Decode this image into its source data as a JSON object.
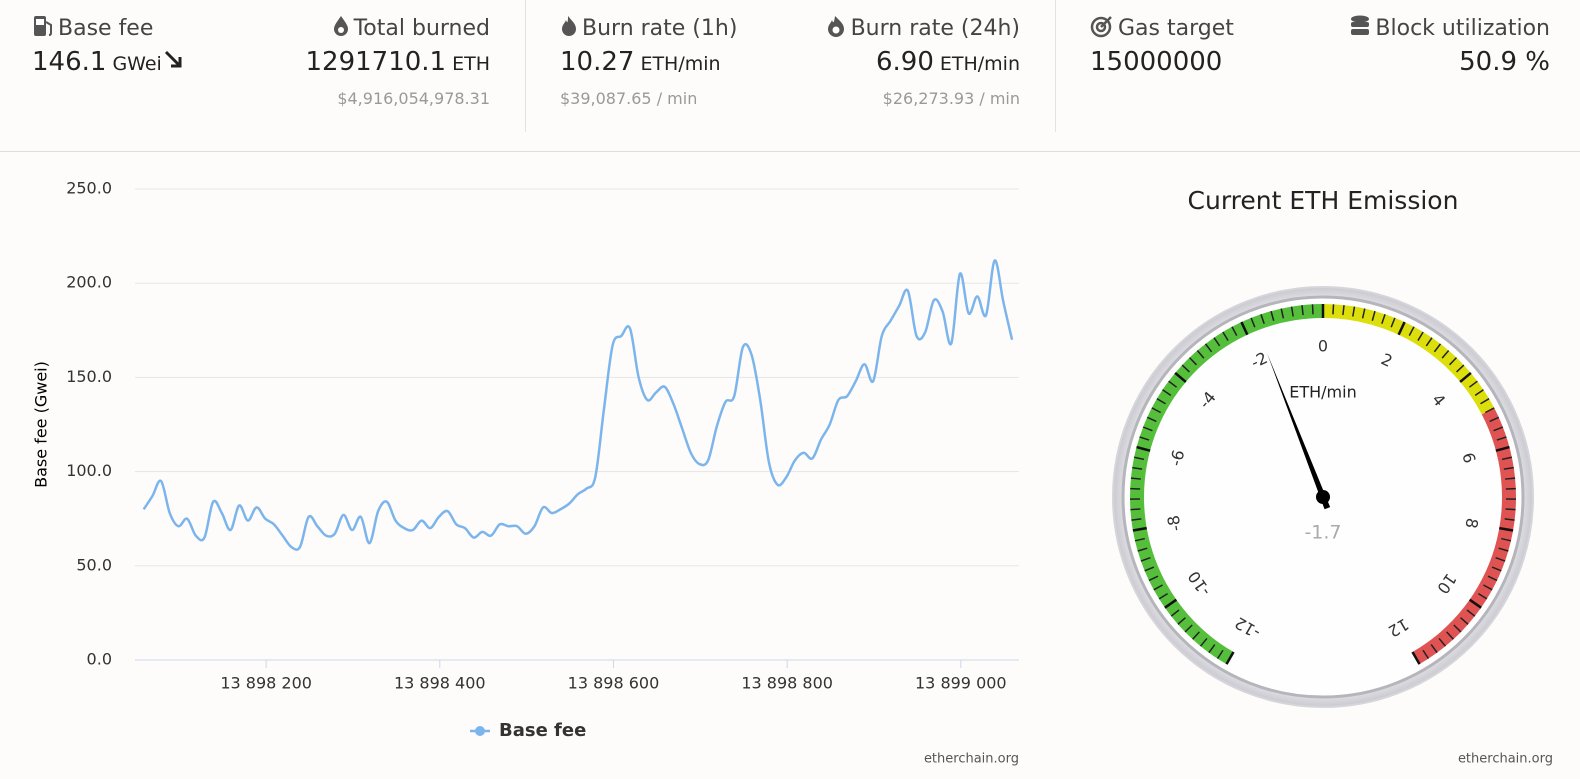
{
  "stats": [
    {
      "label": "Base fee",
      "value": "146.1",
      "unit": "GWei"
    },
    {
      "label": "Total burned",
      "value": "1291710.1",
      "unit": "ETH",
      "sub": "$4,916,054,978.31"
    },
    {
      "label": "Burn rate (1h)",
      "value": "10.27",
      "unit": "ETH/min",
      "sub": "$39,087.65 / min"
    },
    {
      "label": "Burn rate (24h)",
      "value": "6.90",
      "unit": "ETH/min",
      "sub": "$26,273.93 / min"
    },
    {
      "label": "Gas target",
      "value": "15000000"
    },
    {
      "label": "Block utilization",
      "value": "50.9 %"
    }
  ],
  "chart_data": [
    {
      "type": "line",
      "ylabel": "Base fee (Gwei)",
      "credit": "etherchain.org",
      "xlim": [
        13898049,
        13899067
      ],
      "ylim": [
        0,
        250
      ],
      "xticks": [
        {
          "value": 13898200,
          "label": "13 898 200"
        },
        {
          "value": 13898400,
          "label": "13 898 400"
        },
        {
          "value": 13898600,
          "label": "13 898 600"
        },
        {
          "value": 13898800,
          "label": "13 898 800"
        },
        {
          "value": 13899000,
          "label": "13 899 000"
        }
      ],
      "yticks": [
        {
          "value": 0,
          "label": "0.0"
        },
        {
          "value": 50,
          "label": "50.0"
        },
        {
          "value": 100,
          "label": "100.0"
        },
        {
          "value": 150,
          "label": "150.0"
        },
        {
          "value": 200,
          "label": "200.0"
        },
        {
          "value": 250,
          "label": "250.0"
        }
      ],
      "grid": true,
      "x": [
        13898059,
        13898069,
        13898079,
        13898089,
        13898099,
        13898109,
        13898119,
        13898129,
        13898139,
        13898149,
        13898159,
        13898169,
        13898179,
        13898189,
        13898199,
        13898209,
        13898219,
        13898229,
        13898239,
        13898249,
        13898259,
        13898269,
        13898279,
        13898289,
        13898299,
        13898309,
        13898319,
        13898329,
        13898339,
        13898349,
        13898359,
        13898369,
        13898379,
        13898389,
        13898399,
        13898409,
        13898419,
        13898429,
        13898439,
        13898449,
        13898459,
        13898469,
        13898479,
        13898489,
        13898499,
        13898509,
        13898519,
        13898529,
        13898539,
        13898549,
        13898559,
        13898569,
        13898579,
        13898589,
        13898599,
        13898609,
        13898619,
        13898629,
        13898639,
        13898649,
        13898659,
        13898669,
        13898679,
        13898689,
        13898699,
        13898709,
        13898719,
        13898729,
        13898739,
        13898749,
        13898759,
        13898769,
        13898779,
        13898789,
        13898799,
        13898809,
        13898819,
        13898829,
        13898839,
        13898849,
        13898859,
        13898869,
        13898879,
        13898889,
        13898899,
        13898909,
        13898919,
        13898929,
        13898939,
        13898949,
        13898959,
        13898969,
        13898979,
        13898989,
        13898999,
        13899009,
        13899019,
        13899029,
        13899039,
        13899049,
        13899059
      ],
      "series": [
        {
          "name": "Base fee",
          "color": "#7cb5ec",
          "values": [
            80,
            87,
            95,
            78,
            71,
            75,
            66,
            65,
            84,
            78,
            69,
            82,
            74,
            81,
            75,
            72,
            66,
            60,
            60,
            76,
            71,
            66,
            67,
            77,
            69,
            76,
            62,
            79,
            84,
            74,
            70,
            69,
            74,
            70,
            76,
            79,
            72,
            70,
            65,
            68,
            66,
            72,
            71,
            71,
            67,
            71,
            81,
            78,
            80,
            83,
            88,
            91,
            97,
            133,
            167,
            172,
            176,
            150,
            138,
            142,
            145,
            136,
            123,
            110,
            104,
            106,
            124,
            137,
            140,
            166,
            162,
            138,
            105,
            93,
            97,
            106,
            110,
            107,
            117,
            125,
            138,
            140,
            148,
            157,
            148,
            172,
            180,
            188,
            196,
            172,
            174,
            191,
            185,
            168,
            205,
            184,
            193,
            183,
            212,
            190,
            170
          ]
        }
      ]
    },
    {
      "type": "gauge",
      "title": "Current ETH Emission",
      "unit": "ETH/min",
      "credit": "etherchain.org",
      "value": -1.7,
      "lim": [
        -12,
        12
      ],
      "ticks": [
        -12,
        -10,
        -8,
        -6,
        -4,
        -2,
        0,
        2,
        4,
        6,
        8,
        10,
        12
      ],
      "minor_tick_interval": 0.25,
      "bands": [
        {
          "from": -12,
          "to": 0,
          "color": "#55bf3b"
        },
        {
          "from": 0,
          "to": 5,
          "color": "#dddf0d"
        },
        {
          "from": 5,
          "to": 12,
          "color": "#df5353"
        }
      ]
    }
  ]
}
